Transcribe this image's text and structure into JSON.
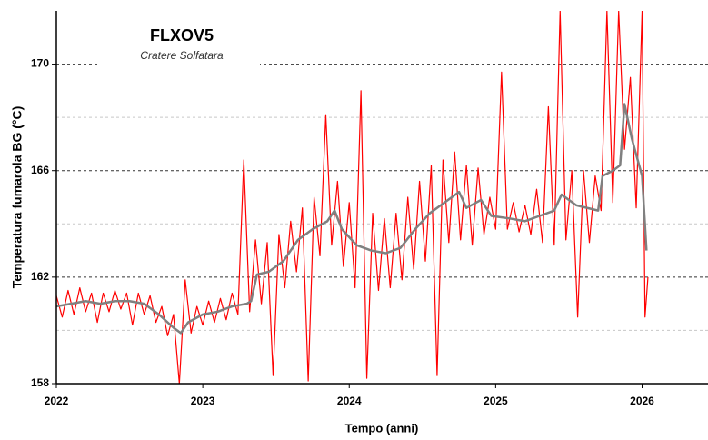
{
  "chart_data": {
    "type": "line",
    "title": "FLXOV5",
    "subtitle": "Cratere Solfatara",
    "xlabel": "Tempo (anni)",
    "ylabel": "Temperatura fumarola BG (°C)",
    "xlim": [
      2022,
      2026.45
    ],
    "ylim": [
      158,
      172
    ],
    "xticks": [
      2022,
      2023,
      2024,
      2025,
      2026
    ],
    "yticks": [
      158,
      162,
      166,
      170
    ],
    "minor_grid": [
      160,
      164,
      168
    ],
    "grid": true,
    "series": [
      {
        "color": "#ff0000",
        "x": [
          2022.0,
          2022.04,
          2022.08,
          2022.12,
          2022.16,
          2022.2,
          2022.24,
          2022.28,
          2022.32,
          2022.36,
          2022.4,
          2022.44,
          2022.48,
          2022.52,
          2022.56,
          2022.6,
          2022.64,
          2022.68,
          2022.72,
          2022.76,
          2022.8,
          2022.84,
          2022.88,
          2022.92,
          2022.96,
          2023.0,
          2023.04,
          2023.08,
          2023.12,
          2023.16,
          2023.2,
          2023.24,
          2023.28,
          2023.32,
          2023.36,
          2023.4,
          2023.44,
          2023.48,
          2023.52,
          2023.56,
          2023.6,
          2023.64,
          2023.68,
          2023.72,
          2023.76,
          2023.8,
          2023.84,
          2023.88,
          2023.92,
          2023.96,
          2024.0,
          2024.04,
          2024.08,
          2024.12,
          2024.16,
          2024.2,
          2024.24,
          2024.28,
          2024.32,
          2024.36,
          2024.4,
          2024.44,
          2024.48,
          2024.52,
          2024.56,
          2024.6,
          2024.64,
          2024.68,
          2024.72,
          2024.76,
          2024.8,
          2024.84,
          2024.88,
          2024.92,
          2024.96,
          2025.0,
          2025.04,
          2025.08,
          2025.12,
          2025.16,
          2025.2,
          2025.24,
          2025.28,
          2025.32,
          2025.36,
          2025.4,
          2025.44,
          2025.48,
          2025.52,
          2025.56,
          2025.6,
          2025.64,
          2025.68,
          2025.72,
          2025.76,
          2025.8,
          2025.84,
          2025.88,
          2025.92,
          2025.96,
          2026.0,
          2026.02,
          2026.04
        ],
        "values": [
          161.3,
          160.5,
          161.5,
          160.6,
          161.6,
          160.7,
          161.4,
          160.3,
          161.4,
          160.7,
          161.5,
          160.8,
          161.4,
          160.2,
          161.4,
          160.6,
          161.3,
          160.3,
          160.9,
          159.8,
          160.6,
          158.0,
          161.9,
          159.9,
          160.9,
          160.2,
          161.1,
          160.3,
          161.2,
          160.4,
          161.4,
          160.6,
          166.4,
          160.7,
          163.4,
          161.0,
          163.3,
          158.3,
          163.6,
          161.6,
          164.1,
          162.2,
          164.6,
          158.1,
          165.0,
          162.8,
          168.1,
          163.2,
          165.6,
          162.4,
          164.8,
          161.6,
          169.0,
          158.2,
          164.4,
          161.5,
          164.2,
          161.6,
          164.4,
          161.9,
          165.0,
          162.3,
          165.6,
          162.6,
          166.2,
          158.3,
          166.4,
          163.3,
          166.7,
          163.4,
          166.2,
          163.2,
          166.1,
          163.6,
          165.0,
          163.8,
          169.7,
          163.8,
          164.8,
          163.7,
          164.7,
          163.6,
          165.3,
          163.3,
          168.4,
          163.2,
          172.0,
          163.4,
          166.0,
          160.5,
          166.0,
          163.3,
          165.8,
          164.5,
          172.0,
          164.8,
          172.0,
          166.8,
          169.5,
          164.6,
          172.0,
          160.5,
          162.0
        ]
      },
      {
        "color": "#808080",
        "x": [
          2022.0,
          2022.1,
          2022.2,
          2022.3,
          2022.4,
          2022.5,
          2022.6,
          2022.7,
          2022.8,
          2022.85,
          2022.9,
          2023.0,
          2023.1,
          2023.2,
          2023.3,
          2023.33,
          2023.37,
          2023.45,
          2023.55,
          2023.65,
          2023.75,
          2023.85,
          2023.9,
          2023.95,
          2024.05,
          2024.15,
          2024.25,
          2024.35,
          2024.45,
          2024.55,
          2024.65,
          2024.75,
          2024.8,
          2024.9,
          2024.97,
          2025.1,
          2025.2,
          2025.3,
          2025.4,
          2025.45,
          2025.55,
          2025.7,
          2025.73,
          2025.8,
          2025.85,
          2025.88,
          2025.93,
          2026.0,
          2026.03
        ],
        "values": [
          160.9,
          161.0,
          161.1,
          161.0,
          161.1,
          161.1,
          161.0,
          160.6,
          160.1,
          159.9,
          160.3,
          160.6,
          160.7,
          160.9,
          161.0,
          161.1,
          162.1,
          162.2,
          162.6,
          163.4,
          163.8,
          164.1,
          164.5,
          163.8,
          163.2,
          163.0,
          162.9,
          163.1,
          163.8,
          164.4,
          164.8,
          165.2,
          164.6,
          164.9,
          164.3,
          164.2,
          164.1,
          164.3,
          164.5,
          165.1,
          164.7,
          164.5,
          165.8,
          166.0,
          166.2,
          168.5,
          167.2,
          165.8,
          163.0
        ]
      }
    ]
  }
}
